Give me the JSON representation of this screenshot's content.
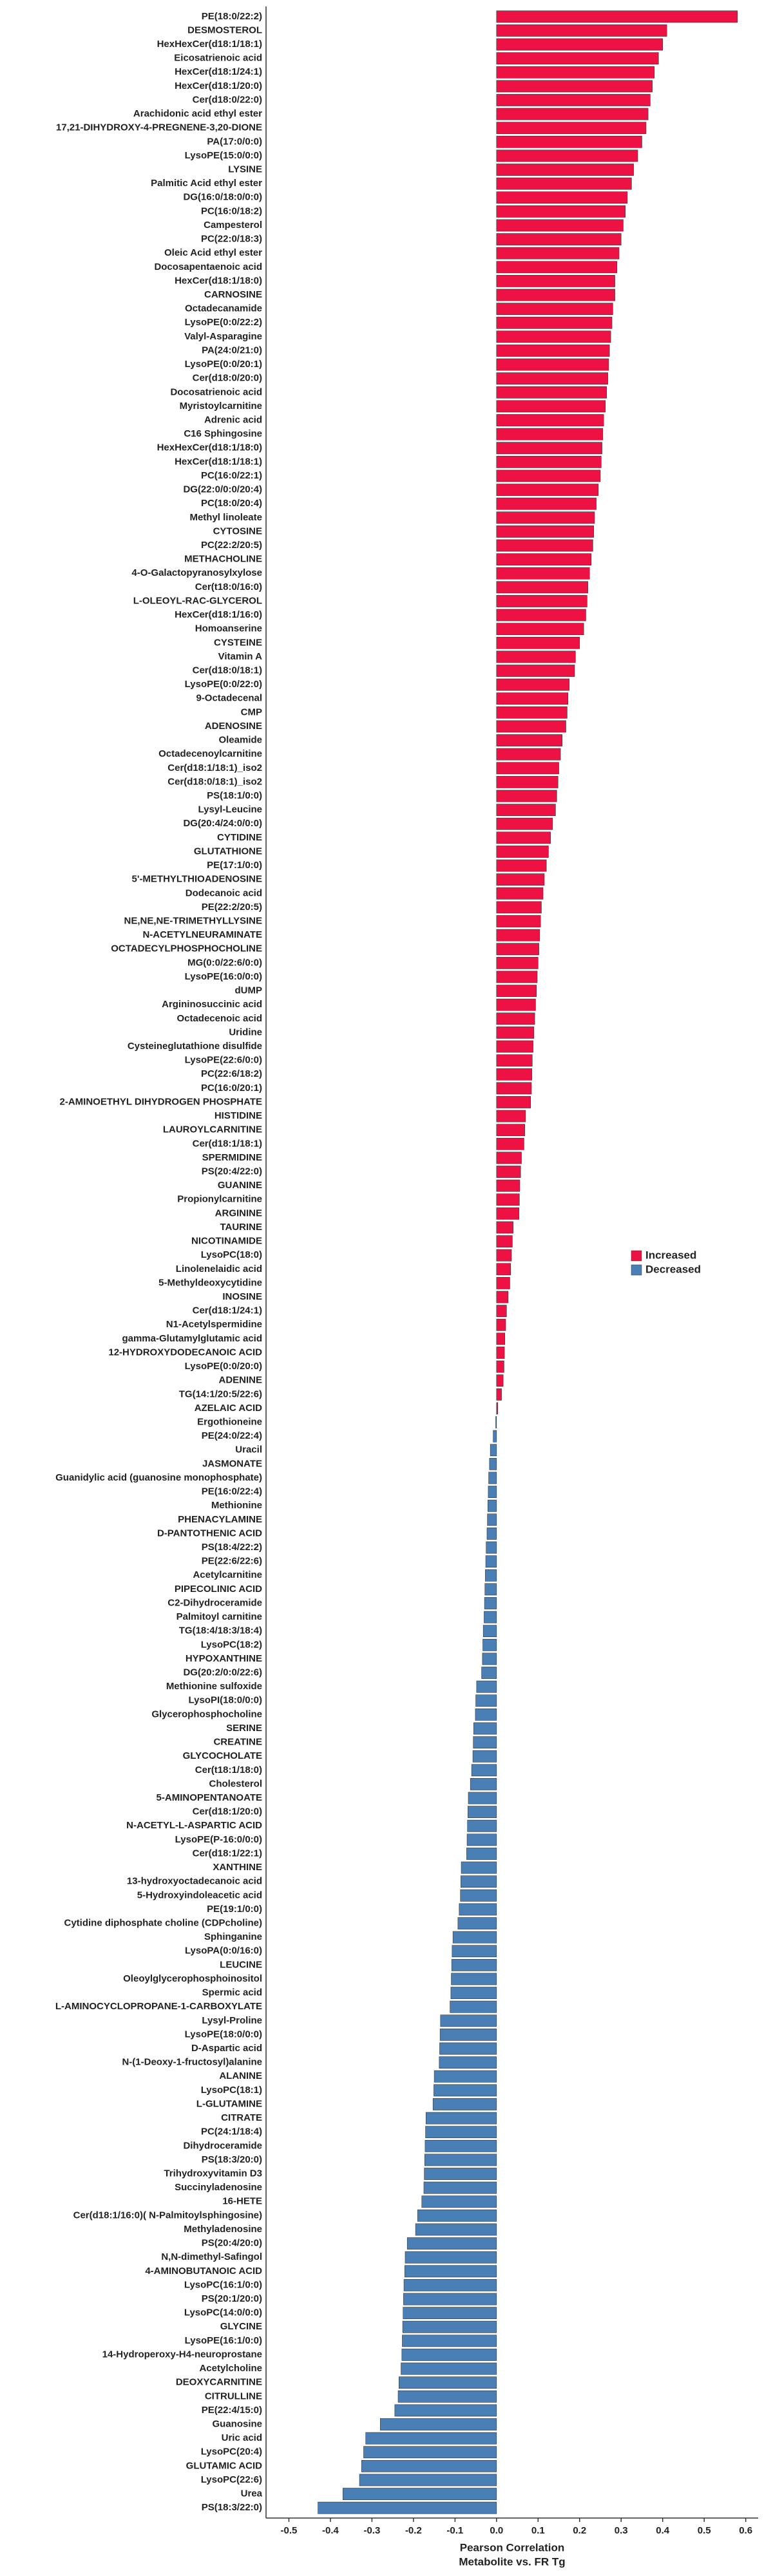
{
  "chart_data": {
    "type": "barh",
    "categories": [
      "PE(18:0/22:2)",
      "DESMOSTEROL",
      "HexHexCer(d18:1/18:1)",
      "Eicosatrienoic acid",
      "HexCer(d18:1/24:1)",
      "HexCer(d18:1/20:0)",
      "Cer(d18:0/22:0)",
      "Arachidonic acid ethyl ester",
      "17,21-DIHYDROXY-4-PREGNENE-3,20-DIONE",
      "PA(17:0/0:0)",
      "LysoPE(15:0/0:0)",
      "LYSINE",
      "Palmitic Acid ethyl ester",
      "DG(16:0/18:0/0:0)",
      "PC(16:0/18:2)",
      "Campesterol",
      "PC(22:0/18:3)",
      "Oleic Acid ethyl ester",
      "Docosapentaenoic acid",
      "HexCer(d18:1/18:0)",
      "CARNOSINE",
      "Octadecanamide",
      "LysoPE(0:0/22:2)",
      "Valyl-Asparagine",
      "PA(24:0/21:0)",
      "LysoPE(0:0/20:1)",
      "Cer(d18:0/20:0)",
      "Docosatrienoic acid",
      "Myristoylcarnitine",
      "Adrenic acid",
      "C16 Sphingosine",
      "HexHexCer(d18:1/18:0)",
      "HexCer(d18:1/18:1)",
      "PC(16:0/22:1)",
      "DG(22:0/0:0/20:4)",
      "PC(18:0/20:4)",
      "Methyl linoleate",
      "CYTOSINE",
      "PC(22:2/20:5)",
      "METHACHOLINE",
      "4-O-Galactopyranosylxylose",
      "Cer(t18:0/16:0)",
      "L-OLEOYL-RAC-GLYCEROL",
      "HexCer(d18:1/16:0)",
      "Homoanserine",
      "CYSTEINE",
      "Vitamin A",
      "Cer(d18:0/18:1)",
      "LysoPE(0:0/22:0)",
      "9-Octadecenal",
      "CMP",
      "ADENOSINE",
      "Oleamide",
      "Octadecenoylcarnitine",
      "Cer(d18:1/18:1)_iso2",
      "Cer(d18:0/18:1)_iso2",
      "PS(18:1/0:0)",
      "Lysyl-Leucine",
      "DG(20:4/24:0/0:0)",
      "CYTIDINE",
      "GLUTATHIONE",
      "PE(17:1/0:0)",
      "5'-METHYLTHIOADENOSINE",
      "Dodecanoic acid",
      "PE(22:2/20:5)",
      "NE,NE,NE-TRIMETHYLLYSINE",
      "N-ACETYLNEURAMINATE",
      "OCTADECYLPHOSPHOCHOLINE",
      "MG(0:0/22:6/0:0)",
      "LysoPE(16:0/0:0)",
      "dUMP",
      "Argininosuccinic acid",
      "Octadecenoic acid",
      "Uridine",
      "Cysteineglutathione disulfide",
      "LysoPE(22:6/0:0)",
      "PC(22:6/18:2)",
      "PC(16:0/20:1)",
      "2-AMINOETHYL DIHYDROGEN PHOSPHATE",
      "HISTIDINE",
      "LAUROYLCARNITINE",
      "Cer(d18:1/18:1)",
      "SPERMIDINE",
      "PS(20:4/22:0)",
      "GUANINE",
      "Propionylcarnitine",
      "ARGININE",
      "TAURINE",
      "NICOTINAMIDE",
      "LysoPC(18:0)",
      "Linolenelaidic acid",
      "5-Methyldeoxycytidine",
      "INOSINE",
      "Cer(d18:1/24:1)",
      "N1-Acetylspermidine",
      "gamma-Glutamylglutamic acid",
      "12-HYDROXYDODECANOIC ACID",
      "LysoPE(0:0/20:0)",
      "ADENINE",
      "TG(14:1/20:5/22:6)",
      "AZELAIC ACID",
      "Ergothioneine",
      "PE(24:0/22:4)",
      "Uracil",
      "JASMONATE",
      "Guanidylic acid (guanosine monophosphate)",
      "PE(16:0/22:4)",
      "Methionine",
      "PHENACYLAMINE",
      "D-PANTOTHENIC ACID",
      "PS(18:4/22:2)",
      "PE(22:6/22:6)",
      "Acetylcarnitine",
      "PIPECOLINIC ACID",
      "C2-Dihydroceramide",
      "Palmitoyl carnitine",
      "TG(18:4/18:3/18:4)",
      "LysoPC(18:2)",
      "HYPOXANTHINE",
      "DG(20:2/0:0/22:6)",
      "Methionine sulfoxide",
      "LysoPI(18:0/0:0)",
      "Glycerophosphocholine",
      "SERINE",
      "CREATINE",
      "GLYCOCHOLATE",
      "Cer(t18:1/18:0)",
      "Cholesterol",
      "5-AMINOPENTANOATE",
      "Cer(d18:1/20:0)",
      "N-ACETYL-L-ASPARTIC ACID",
      "LysoPE(P-16:0/0:0)",
      "Cer(d18:1/22:1)",
      "XANTHINE",
      "13-hydroxyoctadecanoic acid",
      "5-Hydroxyindoleacetic acid",
      "PE(19:1/0:0)",
      "Cytidine diphosphate choline (CDPcholine)",
      "Sphinganine",
      "LysoPA(0:0/16:0)",
      "LEUCINE",
      "Oleoylglycerophosphoinositol",
      "Spermic acid",
      "L-AMINOCYCLOPROPANE-1-CARBOXYLATE",
      "Lysyl-Proline",
      "LysoPE(18:0/0:0)",
      "D-Aspartic acid",
      "N-(1-Deoxy-1-fructosyl)alanine",
      "ALANINE",
      "LysoPC(18:1)",
      "L-GLUTAMINE",
      "CITRATE",
      "PC(24:1/18:4)",
      "Dihydroceramide",
      "PS(18:3/20:0)",
      "Trihydroxyvitamin D3",
      "Succinyladenosine",
      "16-HETE",
      "Cer(d18:1/16:0)( N-Palmitoylsphingosine)",
      "Methyladenosine",
      "PS(20:4/20:0)",
      "N,N-dimethyl-Safingol",
      "4-AMINOBUTANOIC ACID",
      "LysoPC(16:1/0:0)",
      "PS(20:1/20:0)",
      "LysoPC(14:0/0:0)",
      "GLYCINE",
      "LysoPE(16:1/0:0)",
      "14-Hydroperoxy-H4-neuroprostane",
      "Acetylcholine",
      "DEOXYCARNITINE",
      "CITRULLINE",
      "PE(22:4/15:0)",
      "Guanosine",
      "Uric acid",
      "LysoPC(20:4)",
      "GLUTAMIC ACID",
      "LysoPC(22:6)",
      "Urea",
      "PS(18:3/22:0)"
    ],
    "values": [
      0.58,
      0.41,
      0.4,
      0.39,
      0.38,
      0.375,
      0.37,
      0.365,
      0.36,
      0.35,
      0.34,
      0.33,
      0.325,
      0.315,
      0.31,
      0.305,
      0.3,
      0.295,
      0.29,
      0.285,
      0.285,
      0.28,
      0.278,
      0.275,
      0.272,
      0.27,
      0.268,
      0.265,
      0.262,
      0.258,
      0.256,
      0.254,
      0.252,
      0.25,
      0.245,
      0.24,
      0.236,
      0.234,
      0.232,
      0.228,
      0.224,
      0.22,
      0.218,
      0.215,
      0.21,
      0.2,
      0.19,
      0.188,
      0.175,
      0.172,
      0.17,
      0.167,
      0.158,
      0.154,
      0.15,
      0.148,
      0.145,
      0.142,
      0.135,
      0.13,
      0.125,
      0.12,
      0.115,
      0.112,
      0.108,
      0.106,
      0.104,
      0.102,
      0.1,
      0.098,
      0.096,
      0.094,
      0.092,
      0.09,
      0.088,
      0.086,
      0.085,
      0.084,
      0.082,
      0.07,
      0.068,
      0.066,
      0.06,
      0.058,
      0.056,
      0.055,
      0.054,
      0.04,
      0.038,
      0.036,
      0.034,
      0.032,
      0.028,
      0.024,
      0.022,
      0.02,
      0.019,
      0.018,
      0.016,
      0.012,
      0.003,
      -0.002,
      -0.008,
      -0.015,
      -0.017,
      -0.019,
      -0.02,
      -0.021,
      -0.022,
      -0.023,
      -0.025,
      -0.026,
      -0.027,
      -0.028,
      -0.029,
      -0.03,
      -0.032,
      -0.033,
      -0.034,
      -0.036,
      -0.048,
      -0.05,
      -0.051,
      -0.055,
      -0.056,
      -0.057,
      -0.06,
      -0.063,
      -0.068,
      -0.069,
      -0.07,
      -0.071,
      -0.072,
      -0.085,
      -0.086,
      -0.087,
      -0.09,
      -0.093,
      -0.105,
      -0.107,
      -0.108,
      -0.109,
      -0.11,
      -0.112,
      -0.135,
      -0.136,
      -0.137,
      -0.138,
      -0.15,
      -0.151,
      -0.153,
      -0.17,
      -0.171,
      -0.172,
      -0.173,
      -0.174,
      -0.175,
      -0.18,
      -0.19,
      -0.195,
      -0.215,
      -0.22,
      -0.221,
      -0.223,
      -0.224,
      -0.225,
      -0.226,
      -0.227,
      -0.228,
      -0.23,
      -0.235,
      -0.237,
      -0.245,
      -0.28,
      -0.315,
      -0.32,
      -0.325,
      -0.33,
      -0.37,
      -0.43
    ],
    "legend": [
      {
        "name": "Increased",
        "color": "#ee1144"
      },
      {
        "name": "Decreased",
        "color": "#4a7fb5"
      }
    ],
    "xlabel": [
      "Pearson Correlation",
      "Metabolite vs. FR Tg"
    ],
    "xlim": [
      -0.555,
      0.63
    ],
    "xticks": [
      -0.5,
      -0.4,
      -0.3,
      -0.2,
      -0.1,
      {
        "value": 0,
        "label": "0.0"
      },
      0.1,
      0.2,
      0.3,
      0.4,
      0.5,
      0.6
    ],
    "legend_position": "right",
    "grid": false
  }
}
